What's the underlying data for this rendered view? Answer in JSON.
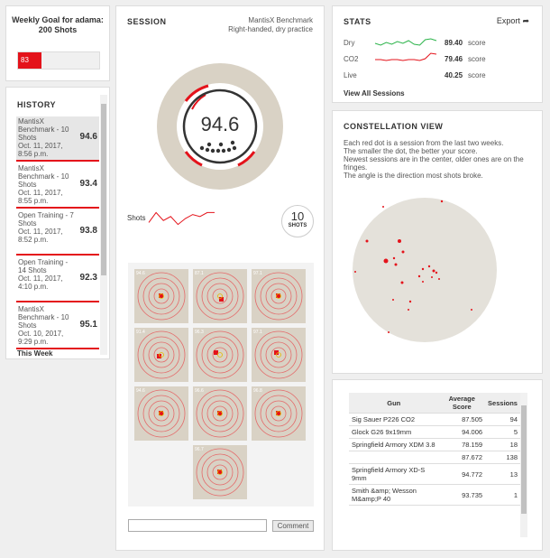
{
  "goal": {
    "title": "Weekly Goal for adama: 200 Shots",
    "progress_label": "83 shots",
    "progress": 83,
    "target": 200
  },
  "history": {
    "title": "HISTORY",
    "items": [
      {
        "name": "MantisX Benchmark - 10 Shots",
        "date": "Oct. 11, 2017, 8:56 p.m.",
        "score": "94.6",
        "selected": true
      },
      {
        "name": "MantisX Benchmark - 10 Shots",
        "date": "Oct. 11, 2017, 8:55 p.m.",
        "score": "93.4"
      },
      {
        "name": "Open Training - 7 Shots",
        "date": "Oct. 11, 2017, 8:52 p.m.",
        "score": "93.8"
      },
      {
        "name": "Open Training - 14 Shots",
        "date": "Oct. 11, 2017, 4:10 p.m.",
        "score": "92.3"
      },
      {
        "name": "MantisX Benchmark - 10 Shots",
        "date": "Oct. 10, 2017, 9:29 p.m.",
        "score": "95.1"
      }
    ],
    "week_label": "This Week"
  },
  "session": {
    "title": "SESSION",
    "subtitle_line1": "MantisX Benchmark",
    "subtitle_line2": "Right-handed, dry practice",
    "score": "94.6",
    "shots_label": "Shots",
    "shot_count": "10",
    "shot_count_label": "SHOTS",
    "sparkline": [
      92,
      97,
      93,
      95,
      91,
      94,
      96,
      95,
      97,
      97
    ],
    "targets": [
      {
        "label": "94.6",
        "dx": 0,
        "dy": 0
      },
      {
        "label": "87.1",
        "dx": 2,
        "dy": 4
      },
      {
        "label": "97.1",
        "dx": 0,
        "dy": 0
      },
      {
        "label": "91.4",
        "dx": -2,
        "dy": 2
      },
      {
        "label": "96.3",
        "dx": -4,
        "dy": -2
      },
      {
        "label": "97.1",
        "dx": -2,
        "dy": -2
      },
      {
        "label": "94.6",
        "dx": 0,
        "dy": 0
      },
      {
        "label": "96.6",
        "dx": 0,
        "dy": 0
      },
      {
        "label": "96.8",
        "dx": 0,
        "dy": 0
      },
      {
        "label": "96.7",
        "dx": 0,
        "dy": 0
      }
    ],
    "comment_placeholder": "",
    "comment_button": "Comment"
  },
  "stats": {
    "title": "STATS",
    "export_label": "Export",
    "rows": [
      {
        "label": "Dry",
        "value": "89.40",
        "suffix": "score",
        "color": "#2bb34a",
        "trend": [
          6,
          4,
          7,
          5,
          8,
          6,
          9,
          5,
          4,
          10,
          11,
          9
        ]
      },
      {
        "label": "CO2",
        "value": "79.46",
        "suffix": "score",
        "color": "#e4131b",
        "trend": [
          6,
          6,
          5,
          6,
          6,
          5,
          6,
          6,
          5,
          7,
          13,
          12
        ]
      },
      {
        "label": "Live",
        "value": "40.25",
        "suffix": "score",
        "color": "#e4131b",
        "trend": []
      }
    ],
    "view_all": "View All Sessions"
  },
  "constellation": {
    "title": "CONSTELLATION VIEW",
    "lines": [
      "Each red dot is a session from the last two weeks.",
      "The smaller the dot, the better your score.",
      "Newest sessions are in the center, older ones are on the fringes.",
      "The angle is the direction most shots broke."
    ]
  },
  "gun_table": {
    "headers": [
      "Gun",
      "Average Score",
      "Sessions"
    ],
    "rows": [
      {
        "gun": "Sig Sauer P226 CO2",
        "avg": "87.505",
        "sessions": "94"
      },
      {
        "gun": "Glock G26 9x19mm",
        "avg": "94.006",
        "sessions": "5"
      },
      {
        "gun": "Springfield Armory XDM 3.8",
        "avg": "78.159",
        "sessions": "18"
      },
      {
        "gun": "",
        "avg": "87.672",
        "sessions": "138"
      },
      {
        "gun": "Springfield Armory XD-S 9mm",
        "avg": "94.772",
        "sessions": "13"
      },
      {
        "gun": "Smith &amp; Wesson M&amp;P 40",
        "avg": "93.735",
        "sessions": "1"
      }
    ]
  }
}
